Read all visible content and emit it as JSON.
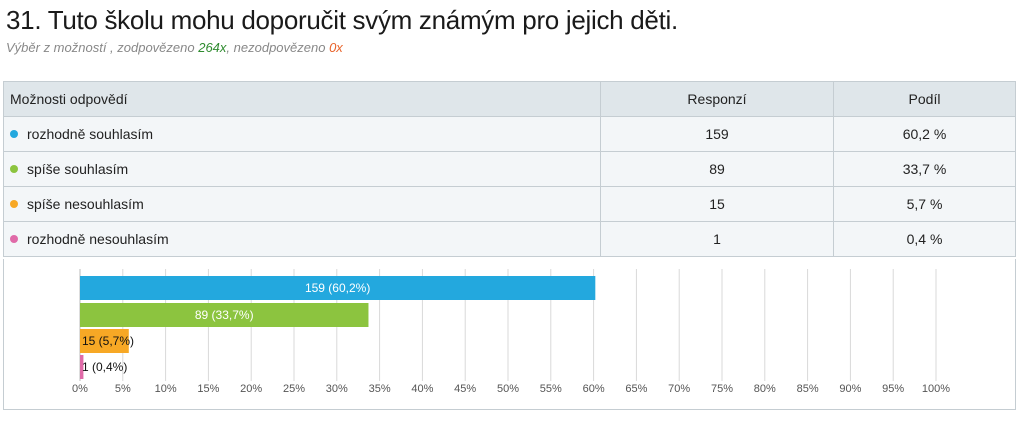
{
  "question": {
    "title": "31. Tuto školu mohu doporučit svým známým pro jejich děti.",
    "subtitle_prefix": "Výběr z možností , zodpovězeno ",
    "answered": "264x",
    "subtitle_mid": ", nezodpovězeno ",
    "unanswered": "0x"
  },
  "table": {
    "headers": [
      "Možnosti odpovědí",
      "Responzí",
      "Podíl"
    ],
    "rows": [
      {
        "label": "rozhodně souhlasím",
        "responses": "159",
        "share": "60,2 %",
        "color": "#23a8de"
      },
      {
        "label": "spíše souhlasím",
        "responses": "89",
        "share": "33,7 %",
        "color": "#8cc43f"
      },
      {
        "label": "spíše nesouhlasím",
        "responses": "15",
        "share": "5,7 %",
        "color": "#f7a825"
      },
      {
        "label": "rozhodně nesouhlasím",
        "responses": "1",
        "share": "0,4 %",
        "color": "#e06aa8"
      }
    ]
  },
  "chart_data": {
    "type": "bar",
    "orientation": "horizontal",
    "categories": [
      "rozhodně souhlasím",
      "spíše souhlasím",
      "spíše nesouhlasím",
      "rozhodně nesouhlasím"
    ],
    "values": [
      60.2,
      33.7,
      5.7,
      0.4
    ],
    "data_labels": [
      "159 (60,2%)",
      "89 (33,7%)",
      "15 (5,7%)",
      "1 (0,4%)"
    ],
    "colors": [
      "#23a8de",
      "#8cc43f",
      "#f7a825",
      "#e06aa8"
    ],
    "xlim": [
      0,
      100
    ],
    "x_ticks": [
      "0%",
      "5%",
      "10%",
      "15%",
      "20%",
      "25%",
      "30%",
      "35%",
      "40%",
      "45%",
      "50%",
      "55%",
      "60%",
      "65%",
      "70%",
      "75%",
      "80%",
      "85%",
      "90%",
      "95%",
      "100%"
    ],
    "grid": true
  }
}
